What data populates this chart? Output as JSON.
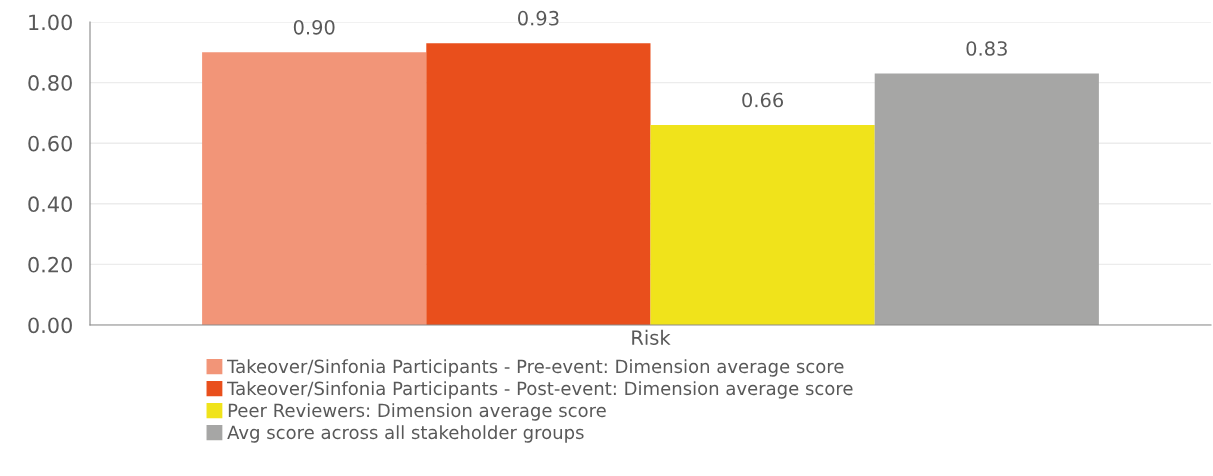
{
  "chart_data": {
    "type": "bar",
    "categories": [
      "Risk"
    ],
    "series": [
      {
        "name": "Takeover/Sinfonia Participants - Pre-event: Dimension average score",
        "color": "#f29578",
        "values": [
          0.9
        ],
        "value_labels": [
          "0.90"
        ]
      },
      {
        "name": "Takeover/Sinfonia Participants - Post-event: Dimension average score",
        "color": "#e94f1c",
        "values": [
          0.93
        ],
        "value_labels": [
          "0.93"
        ]
      },
      {
        "name": "Peer Reviewers: Dimension average score",
        "color": "#f0e31b",
        "values": [
          0.66
        ],
        "value_labels": [
          "0.66"
        ]
      },
      {
        "name": "Avg score across all stakeholder groups",
        "color": "#a6a6a5",
        "values": [
          0.83
        ],
        "value_labels": [
          "0.83"
        ]
      }
    ],
    "ylim": [
      0,
      1
    ],
    "yticks": [
      {
        "value": 0,
        "label": "0.00"
      },
      {
        "value": 0.2,
        "label": "0.20"
      },
      {
        "value": 0.4,
        "label": "0.40"
      },
      {
        "value": 0.6,
        "label": "0.60"
      },
      {
        "value": 0.8,
        "label": "0.80"
      },
      {
        "value": 1,
        "label": "1.00"
      }
    ],
    "grid": "y",
    "legend": "bottom"
  }
}
